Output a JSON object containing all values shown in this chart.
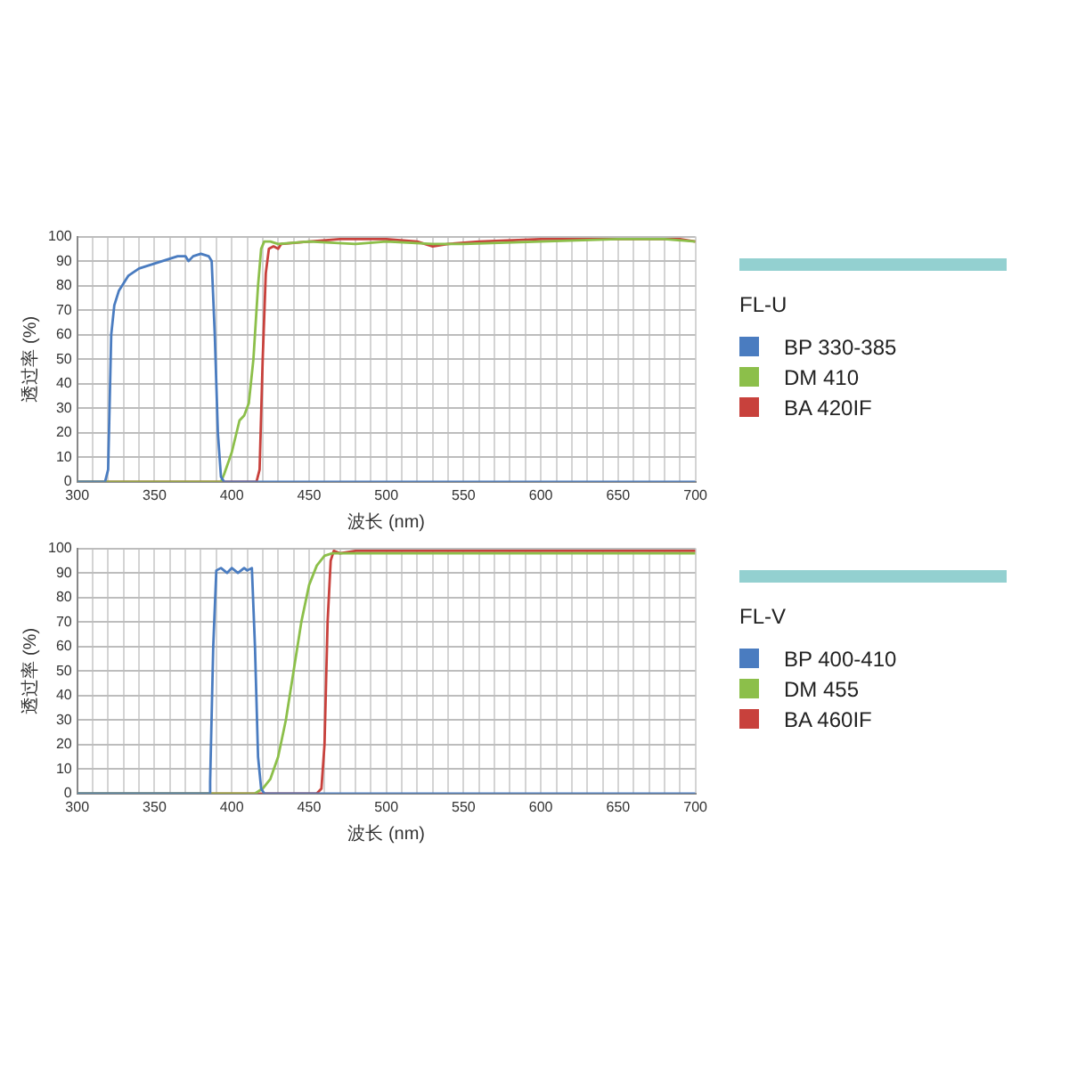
{
  "chart_data": [
    {
      "type": "line",
      "xlabel": "波长 (nm)",
      "ylabel": "透过率 (%)",
      "legend_title": "FL-U",
      "legend": "right",
      "grid": true,
      "marker": "none",
      "line_style": "solid",
      "xlim": [
        300,
        700
      ],
      "ylim": [
        0,
        100
      ],
      "xticks": [
        300,
        {
          "value": 310,
          "label": null
        },
        {
          "value": 320,
          "label": null
        },
        {
          "value": 330,
          "label": null
        },
        {
          "value": 340,
          "label": null
        },
        350,
        {
          "value": 360,
          "label": null
        },
        {
          "value": 370,
          "label": null
        },
        {
          "value": 380,
          "label": null
        },
        {
          "value": 390,
          "label": null
        },
        400,
        {
          "value": 410,
          "label": null
        },
        {
          "value": 420,
          "label": null
        },
        {
          "value": 430,
          "label": null
        },
        {
          "value": 440,
          "label": null
        },
        450,
        {
          "value": 460,
          "label": null
        },
        {
          "value": 470,
          "label": null
        },
        {
          "value": 480,
          "label": null
        },
        {
          "value": 490,
          "label": null
        },
        500,
        {
          "value": 510,
          "label": null
        },
        {
          "value": 520,
          "label": null
        },
        {
          "value": 530,
          "label": null
        },
        {
          "value": 540,
          "label": null
        },
        550,
        {
          "value": 560,
          "label": null
        },
        {
          "value": 570,
          "label": null
        },
        {
          "value": 580,
          "label": null
        },
        {
          "value": 590,
          "label": null
        },
        600,
        {
          "value": 610,
          "label": null
        },
        {
          "value": 620,
          "label": null
        },
        {
          "value": 630,
          "label": null
        },
        {
          "value": 640,
          "label": null
        },
        650,
        {
          "value": 660,
          "label": null
        },
        {
          "value": 670,
          "label": null
        },
        {
          "value": 680,
          "label": null
        },
        {
          "value": 690,
          "label": null
        },
        700
      ],
      "yticks": [
        0,
        10,
        20,
        30,
        40,
        50,
        60,
        70,
        80,
        90,
        100
      ],
      "series": [
        {
          "name": "BP 330-385",
          "color": "#4a7cc0",
          "x": [
            300,
            318,
            320,
            322,
            324,
            327,
            333,
            340,
            345,
            350,
            355,
            360,
            365,
            370,
            372,
            375,
            380,
            385,
            387,
            389,
            391,
            393,
            395,
            700
          ],
          "values": [
            0,
            0,
            5,
            60,
            72,
            78,
            84,
            87,
            88,
            89,
            90,
            91,
            92,
            92,
            90,
            92,
            93,
            92,
            90,
            60,
            20,
            2,
            0,
            0
          ]
        },
        {
          "name": "DM 410",
          "color": "#8cbf4a",
          "x": [
            300,
            393,
            395,
            400,
            405,
            408,
            411,
            414,
            417,
            419,
            421,
            425,
            430,
            450,
            480,
            500,
            530,
            550,
            600,
            650,
            680,
            700
          ],
          "values": [
            0,
            0,
            3,
            12,
            25,
            27,
            32,
            50,
            80,
            95,
            98,
            98,
            97,
            98,
            97,
            98,
            97,
            97,
            98,
            99,
            99,
            98
          ]
        },
        {
          "name": "BA 420IF",
          "color": "#c8413c",
          "x": [
            300,
            416,
            418,
            420,
            422,
            424,
            427,
            430,
            432,
            450,
            470,
            500,
            520,
            530,
            540,
            560,
            600,
            650,
            690,
            700
          ],
          "values": [
            0,
            0,
            5,
            50,
            85,
            95,
            96,
            95,
            97,
            98,
            99,
            99,
            98,
            96,
            97,
            98,
            99,
            99,
            99,
            98
          ]
        }
      ]
    },
    {
      "type": "line",
      "xlabel": "波长 (nm)",
      "ylabel": "透过率 (%)",
      "legend_title": "FL-V",
      "legend": "right",
      "grid": true,
      "marker": "none",
      "line_style": "solid",
      "xlim": [
        300,
        700
      ],
      "ylim": [
        0,
        100
      ],
      "xticks": [
        300,
        {
          "value": 310,
          "label": null
        },
        {
          "value": 320,
          "label": null
        },
        {
          "value": 330,
          "label": null
        },
        {
          "value": 340,
          "label": null
        },
        350,
        {
          "value": 360,
          "label": null
        },
        {
          "value": 370,
          "label": null
        },
        {
          "value": 380,
          "label": null
        },
        {
          "value": 390,
          "label": null
        },
        400,
        {
          "value": 410,
          "label": null
        },
        {
          "value": 420,
          "label": null
        },
        {
          "value": 430,
          "label": null
        },
        {
          "value": 440,
          "label": null
        },
        450,
        {
          "value": 460,
          "label": null
        },
        {
          "value": 470,
          "label": null
        },
        {
          "value": 480,
          "label": null
        },
        {
          "value": 490,
          "label": null
        },
        500,
        {
          "value": 510,
          "label": null
        },
        {
          "value": 520,
          "label": null
        },
        {
          "value": 530,
          "label": null
        },
        {
          "value": 540,
          "label": null
        },
        550,
        {
          "value": 560,
          "label": null
        },
        {
          "value": 570,
          "label": null
        },
        {
          "value": 580,
          "label": null
        },
        {
          "value": 590,
          "label": null
        },
        600,
        {
          "value": 610,
          "label": null
        },
        {
          "value": 620,
          "label": null
        },
        {
          "value": 630,
          "label": null
        },
        {
          "value": 640,
          "label": null
        },
        650,
        {
          "value": 660,
          "label": null
        },
        {
          "value": 670,
          "label": null
        },
        {
          "value": 680,
          "label": null
        },
        {
          "value": 690,
          "label": null
        },
        700
      ],
      "yticks": [
        0,
        10,
        20,
        30,
        40,
        50,
        60,
        70,
        80,
        90,
        100
      ],
      "series": [
        {
          "name": "BP 400-410",
          "color": "#4a7cc0",
          "x": [
            300,
            385,
            386,
            388,
            390,
            393,
            397,
            400,
            404,
            408,
            410,
            413,
            415,
            417,
            419,
            421,
            700
          ],
          "values": [
            0,
            0,
            5,
            60,
            91,
            92,
            90,
            92,
            90,
            92,
            91,
            92,
            60,
            15,
            2,
            0,
            0
          ]
        },
        {
          "name": "DM 455",
          "color": "#8cbf4a",
          "x": [
            300,
            415,
            420,
            425,
            430,
            435,
            440,
            445,
            450,
            455,
            460,
            465,
            470,
            700
          ],
          "values": [
            0,
            0,
            2,
            6,
            15,
            30,
            50,
            70,
            85,
            93,
            97,
            98,
            98,
            98
          ]
        },
        {
          "name": "BA 460IF",
          "color": "#c8413c",
          "x": [
            300,
            455,
            458,
            460,
            462,
            464,
            466,
            470,
            480,
            700
          ],
          "values": [
            0,
            0,
            2,
            20,
            70,
            95,
            99,
            98,
            99,
            99
          ]
        }
      ]
    }
  ]
}
